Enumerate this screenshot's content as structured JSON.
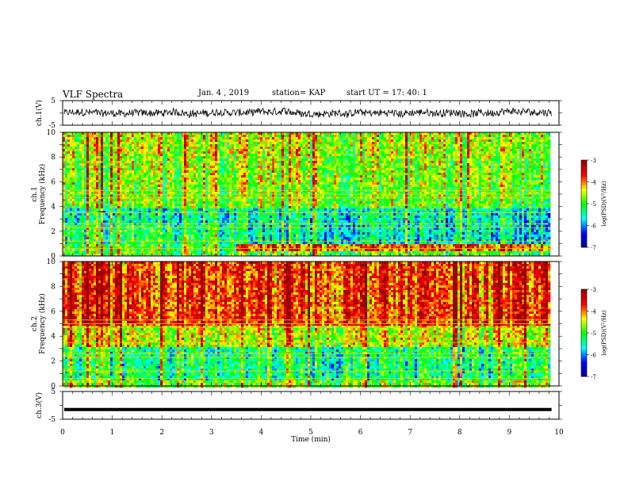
{
  "header": {
    "title": "VLF Spectra",
    "date": "Jan. 4 , 2019",
    "station": "station= KAP",
    "start_time": "start  UT =   17: 40: 1"
  },
  "chart_data": [
    {
      "type": "line",
      "name": "ch1-voltage",
      "ylabel": "ch.1(V)",
      "ylim": [
        -5,
        5
      ],
      "yticks": [
        "5",
        "-5"
      ],
      "xlim": [
        0,
        10
      ]
    },
    {
      "type": "heatmap",
      "name": "ch1-spectrogram",
      "ylabel_line1": "ch.1",
      "ylabel_line2": "Frequency  (kHz)",
      "ylim": [
        0,
        10
      ],
      "yticks": [
        "0",
        "2",
        "4",
        "6",
        "8",
        "10"
      ],
      "xlim": [
        0,
        9.85
      ],
      "colorbar": {
        "label": "log(PSD)(V²/Hz)",
        "ticks": [
          "-3",
          "-4",
          "-5",
          "-6",
          "-7"
        ],
        "range": [
          -7,
          -3
        ]
      }
    },
    {
      "type": "heatmap",
      "name": "ch2-spectrogram",
      "ylabel_line1": "ch.2",
      "ylabel_line2": "Frequency  (kHz)",
      "ylim": [
        0,
        10
      ],
      "yticks": [
        "0",
        "2",
        "4",
        "6",
        "8",
        "10"
      ],
      "xlim": [
        0,
        9.85
      ],
      "colorbar": {
        "label": "log(PSD)(V²/Hz)",
        "ticks": [
          "-3",
          "-4",
          "-5",
          "-6",
          "-7"
        ],
        "range": [
          -7,
          -3
        ]
      }
    },
    {
      "type": "line",
      "name": "ch3-voltage",
      "ylabel": "ch.3(V)",
      "ylim": [
        -5,
        5
      ],
      "yticks": [
        "5",
        "-5"
      ],
      "approx_value": -1.5,
      "xlim": [
        0,
        9.85
      ]
    }
  ],
  "xaxis": {
    "label": "Time  (min)",
    "ticks": [
      "0",
      "1",
      "2",
      "3",
      "4",
      "5",
      "6",
      "7",
      "8",
      "9",
      "10"
    ],
    "range": [
      0,
      10
    ]
  },
  "colors": {
    "colormap": [
      "#00008f",
      "#0000ff",
      "#00ffff",
      "#00ff00",
      "#ffff00",
      "#ff0000",
      "#8f0000"
    ],
    "line": "#000000"
  }
}
